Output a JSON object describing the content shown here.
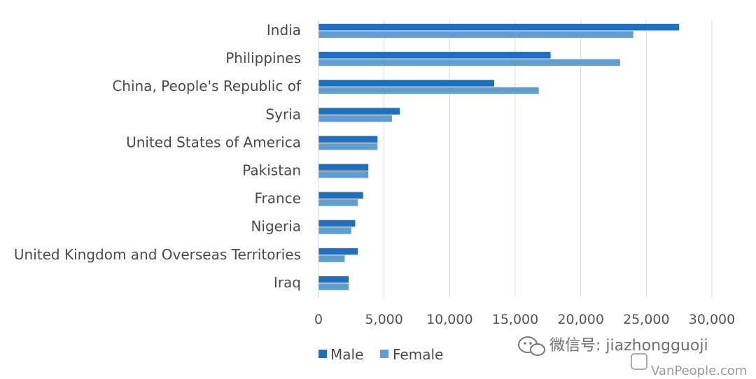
{
  "chart_data": {
    "type": "bar",
    "orientation": "horizontal",
    "categories": [
      "India",
      "Philippines",
      "China, People's Republic of",
      "Syria",
      "United States of America",
      "Pakistan",
      "France",
      "Nigeria",
      "United Kingdom and Overseas Territories",
      "Iraq"
    ],
    "series": [
      {
        "name": "Male",
        "color": "#1f6fbf",
        "values": [
          27500,
          17700,
          13400,
          6200,
          4500,
          3800,
          3400,
          2800,
          3000,
          2300
        ]
      },
      {
        "name": "Female",
        "color": "#5f9ecf",
        "values": [
          24000,
          23000,
          16800,
          5600,
          4500,
          3800,
          3000,
          2500,
          2000,
          2300
        ]
      }
    ],
    "xlim": [
      0,
      30000
    ],
    "xticks": [
      0,
      5000,
      10000,
      15000,
      20000,
      25000,
      30000
    ],
    "xtick_labels": [
      "0",
      "5,000",
      "10,000",
      "15,000",
      "20,000",
      "25,000",
      "30,000"
    ],
    "title": "",
    "xlabel": "",
    "ylabel": "",
    "grid": "vertical",
    "legend_position": "bottom"
  },
  "watermark": {
    "wechat_label": "微信号: jiazhongguoji",
    "site_label": "VanPeople.com"
  }
}
